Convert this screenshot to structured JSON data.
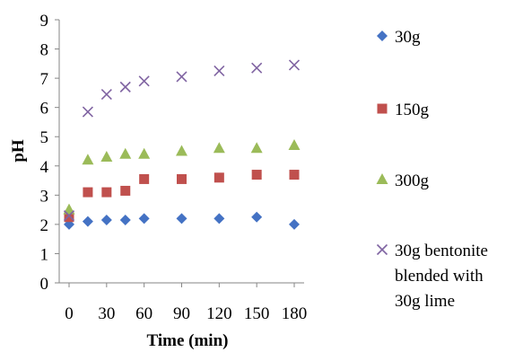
{
  "chart_data": {
    "type": "scatter",
    "xlabel": "Time (min)",
    "ylabel": "pH",
    "xlim": [
      0,
      180
    ],
    "ylim": [
      0,
      9
    ],
    "x_ticks": [
      "0",
      "30",
      "60",
      "90",
      "120",
      "150",
      "180"
    ],
    "y_ticks": [
      "0",
      "1",
      "2",
      "3",
      "4",
      "5",
      "6",
      "7",
      "8",
      "9"
    ],
    "grid": false,
    "legend_position": "right",
    "series": [
      {
        "name": "30g",
        "marker": "diamond",
        "color": "#4472C4",
        "x": [
          0,
          15,
          30,
          45,
          60,
          90,
          120,
          150,
          180
        ],
        "y": [
          2.0,
          2.1,
          2.15,
          2.15,
          2.2,
          2.2,
          2.2,
          2.25,
          2.0
        ]
      },
      {
        "name": "150g",
        "marker": "square",
        "color": "#C0504D",
        "x": [
          0,
          15,
          30,
          45,
          60,
          90,
          120,
          150,
          180
        ],
        "y": [
          2.25,
          3.1,
          3.1,
          3.15,
          3.55,
          3.55,
          3.6,
          3.7,
          3.7
        ]
      },
      {
        "name": "300g",
        "marker": "triangle",
        "color": "#9BBB59",
        "x": [
          0,
          15,
          30,
          45,
          60,
          90,
          120,
          150,
          180
        ],
        "y": [
          2.5,
          4.2,
          4.3,
          4.4,
          4.4,
          4.5,
          4.6,
          4.6,
          4.7
        ]
      },
      {
        "name": "30g bentonite blended with 30g lime",
        "legend_lines": [
          "30g bentonite",
          "blended with",
          "30g lime"
        ],
        "marker": "x",
        "color": "#8064A2",
        "x": [
          0,
          15,
          30,
          45,
          60,
          90,
          120,
          150,
          180
        ],
        "y": [
          2.3,
          5.85,
          6.45,
          6.7,
          6.9,
          7.05,
          7.25,
          7.35,
          7.45
        ]
      }
    ]
  }
}
